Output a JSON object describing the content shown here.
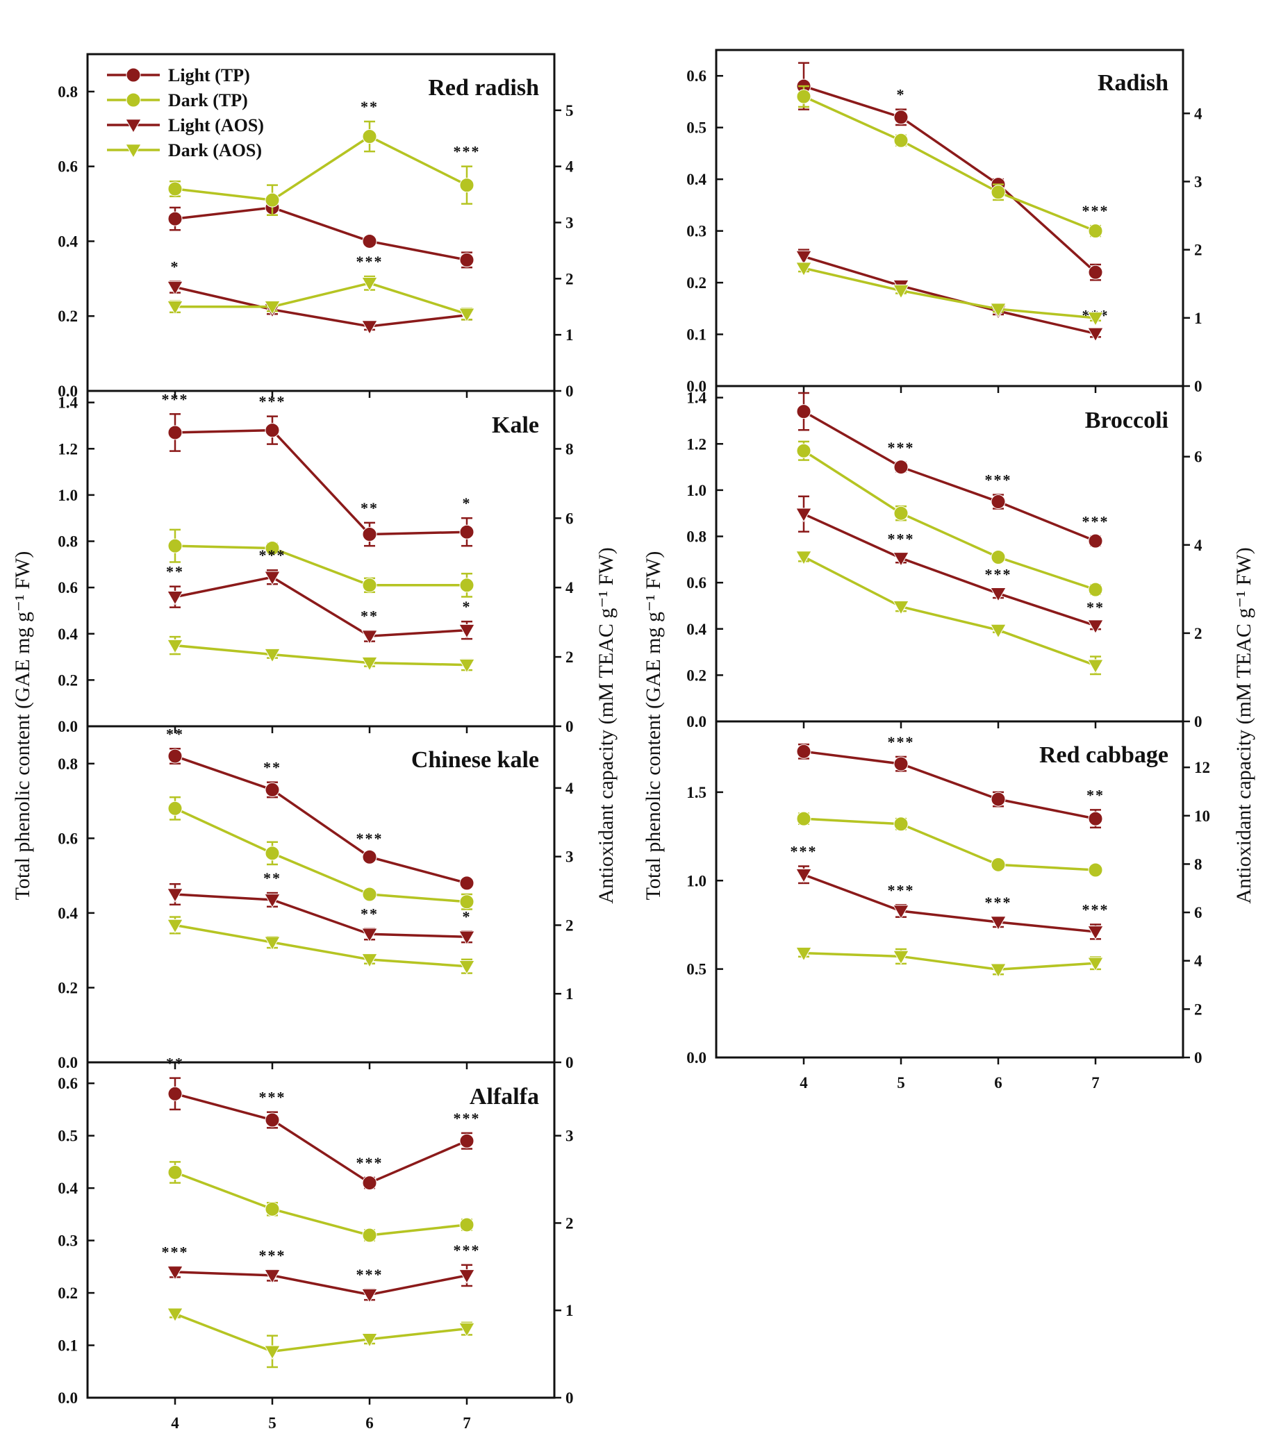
{
  "figure": {
    "ylabel_left": "Total phenolic content (GAE mg g⁻¹ FW)",
    "ylabel_right": "Antioxidant capacity (mM TEAC g⁻¹ FW)",
    "legend": [
      {
        "label": "Light (TP)",
        "color": "#8B1A1A",
        "marker": "circle"
      },
      {
        "label": "Dark (TP)",
        "color": "#B5C422",
        "marker": "circle"
      },
      {
        "label": "Light (AOS)",
        "color": "#8B1A1A",
        "marker": "triangle-down"
      },
      {
        "label": "Dark (AOS)",
        "color": "#B5C422",
        "marker": "triangle-down"
      }
    ]
  },
  "chart_data": [
    {
      "type": "line",
      "title": "Red radish",
      "x": [
        4,
        5,
        6,
        7
      ],
      "y_left": {
        "range": [
          0,
          0.9
        ],
        "ticks": [
          "0.0",
          "0.2",
          "0.4",
          "0.6",
          "0.8"
        ]
      },
      "y_right": {
        "range": [
          0,
          6.0
        ],
        "ticks": [
          "0",
          "1",
          "2",
          "3",
          "4",
          "5"
        ]
      },
      "series": [
        {
          "name": "Light (TP)",
          "axis": "left",
          "values": [
            0.46,
            0.49,
            0.4,
            0.35
          ],
          "errors": [
            0.03,
            0.02,
            0.01,
            0.02
          ],
          "stars": [
            "",
            "",
            "",
            ""
          ]
        },
        {
          "name": "Dark (TP)",
          "axis": "left",
          "values": [
            0.54,
            0.51,
            0.68,
            0.55
          ],
          "errors": [
            0.02,
            0.04,
            0.04,
            0.05
          ],
          "stars": [
            "",
            "",
            "**",
            "***"
          ]
        },
        {
          "name": "Light (AOS)",
          "axis": "right",
          "values": [
            1.85,
            1.45,
            1.15,
            1.35
          ],
          "errors": [
            0.1,
            0.08,
            0.06,
            0.08
          ],
          "stars": [
            "*",
            "",
            "",
            ""
          ]
        },
        {
          "name": "Dark (AOS)",
          "axis": "right",
          "values": [
            1.5,
            1.5,
            1.92,
            1.37
          ],
          "errors": [
            0.1,
            0.08,
            0.12,
            0.1
          ],
          "stars": [
            "",
            "",
            "***",
            ""
          ]
        }
      ]
    },
    {
      "type": "line",
      "title": "Kale",
      "x": [
        4,
        5,
        6,
        7
      ],
      "y_left": {
        "range": [
          0,
          1.45
        ],
        "ticks": [
          "0.0",
          "0.2",
          "0.4",
          "0.6",
          "0.8",
          "1.0",
          "1.2",
          "1.4"
        ]
      },
      "y_right": {
        "range": [
          0,
          9.67
        ],
        "ticks": [
          "0",
          "2",
          "4",
          "6",
          "8"
        ]
      },
      "series": [
        {
          "name": "Light (TP)",
          "axis": "left",
          "values": [
            1.27,
            1.28,
            0.83,
            0.84
          ],
          "errors": [
            0.08,
            0.06,
            0.05,
            0.06
          ],
          "stars": [
            "***",
            "***",
            "**",
            "*"
          ]
        },
        {
          "name": "Dark (TP)",
          "axis": "left",
          "values": [
            0.78,
            0.77,
            0.61,
            0.61
          ],
          "errors": [
            0.07,
            0.02,
            0.03,
            0.05
          ],
          "stars": [
            "",
            "",
            "",
            ""
          ]
        },
        {
          "name": "Light (AOS)",
          "axis": "right",
          "values": [
            3.73,
            4.3,
            2.6,
            2.77
          ],
          "errors": [
            0.3,
            0.2,
            0.15,
            0.25
          ],
          "stars": [
            "**",
            "***",
            "**",
            "*"
          ]
        },
        {
          "name": "Dark (AOS)",
          "axis": "right",
          "values": [
            2.33,
            2.07,
            1.83,
            1.77
          ],
          "errors": [
            0.25,
            0.1,
            0.1,
            0.15
          ],
          "stars": [
            "",
            "",
            "",
            ""
          ]
        }
      ]
    },
    {
      "type": "line",
      "title": "Chinese kale",
      "x": [
        4,
        5,
        6,
        7
      ],
      "y_left": {
        "range": [
          0,
          0.9
        ],
        "ticks": [
          "0.0",
          "0.2",
          "0.4",
          "0.6",
          "0.8"
        ]
      },
      "y_right": {
        "range": [
          0,
          4.9
        ],
        "ticks": [
          "0",
          "1",
          "2",
          "3",
          "4"
        ]
      },
      "series": [
        {
          "name": "Light (TP)",
          "axis": "left",
          "values": [
            0.82,
            0.73,
            0.55,
            0.48
          ],
          "errors": [
            0.02,
            0.02,
            0.01,
            0.01
          ],
          "stars": [
            "**",
            "**",
            "***",
            ""
          ]
        },
        {
          "name": "Dark (TP)",
          "axis": "left",
          "values": [
            0.68,
            0.56,
            0.45,
            0.43
          ],
          "errors": [
            0.03,
            0.03,
            0.01,
            0.02
          ],
          "stars": [
            "",
            "",
            "",
            ""
          ]
        },
        {
          "name": "Light (AOS)",
          "axis": "right",
          "values": [
            2.45,
            2.37,
            1.87,
            1.83
          ],
          "errors": [
            0.15,
            0.1,
            0.08,
            0.08
          ],
          "stars": [
            "",
            "**",
            "**",
            "*"
          ]
        },
        {
          "name": "Dark (AOS)",
          "axis": "right",
          "values": [
            2.0,
            1.75,
            1.5,
            1.4
          ],
          "errors": [
            0.12,
            0.08,
            0.06,
            0.1
          ],
          "stars": [
            "",
            "",
            "",
            ""
          ]
        }
      ]
    },
    {
      "type": "line",
      "title": "Alfalfa",
      "x": [
        4,
        5,
        6,
        7
      ],
      "y_left": {
        "range": [
          0,
          0.64
        ],
        "ticks": [
          "0.0",
          "0.1",
          "0.2",
          "0.3",
          "0.4",
          "0.5",
          "0.6"
        ]
      },
      "y_right": {
        "range": [
          0,
          3.84
        ],
        "ticks": [
          "0",
          "1",
          "2",
          "3"
        ]
      },
      "series": [
        {
          "name": "Light (TP)",
          "axis": "left",
          "values": [
            0.58,
            0.53,
            0.41,
            0.49
          ],
          "errors": [
            0.03,
            0.015,
            0.01,
            0.015
          ],
          "stars": [
            "**",
            "***",
            "***",
            "***"
          ]
        },
        {
          "name": "Dark (TP)",
          "axis": "left",
          "values": [
            0.43,
            0.36,
            0.31,
            0.33
          ],
          "errors": [
            0.02,
            0.012,
            0.01,
            0.01
          ],
          "stars": [
            "",
            "",
            "",
            ""
          ]
        },
        {
          "name": "Light (AOS)",
          "axis": "right",
          "values": [
            1.44,
            1.4,
            1.18,
            1.4
          ],
          "errors": [
            0.06,
            0.06,
            0.06,
            0.12
          ],
          "stars": [
            "***",
            "***",
            "***",
            "***"
          ]
        },
        {
          "name": "Dark (AOS)",
          "axis": "right",
          "values": [
            0.96,
            0.53,
            0.67,
            0.79
          ],
          "errors": [
            0.04,
            0.18,
            0.05,
            0.07
          ],
          "stars": [
            "",
            "",
            "",
            ""
          ]
        }
      ]
    },
    {
      "type": "line",
      "title": "Radish",
      "x": [
        4,
        5,
        6,
        7
      ],
      "y_left": {
        "range": [
          0,
          0.65
        ],
        "ticks": [
          "0.0",
          "0.1",
          "0.2",
          "0.3",
          "0.4",
          "0.5",
          "0.6"
        ]
      },
      "y_right": {
        "range": [
          0,
          4.93
        ],
        "ticks": [
          "0",
          "1",
          "2",
          "3",
          "4"
        ]
      },
      "series": [
        {
          "name": "Light (TP)",
          "axis": "left",
          "values": [
            0.58,
            0.52,
            0.39,
            0.22
          ],
          "errors": [
            0.045,
            0.015,
            0.01,
            0.015
          ],
          "stars": [
            "",
            "*",
            "",
            ""
          ]
        },
        {
          "name": "Dark (TP)",
          "axis": "left",
          "values": [
            0.56,
            0.475,
            0.375,
            0.3
          ],
          "errors": [
            0.02,
            0.01,
            0.015,
            0.01
          ],
          "stars": [
            "",
            "",
            "",
            "***"
          ]
        },
        {
          "name": "Light (AOS)",
          "axis": "right",
          "values": [
            1.9,
            1.47,
            1.1,
            0.77
          ],
          "errors": [
            0.1,
            0.05,
            0.05,
            0.05
          ],
          "stars": [
            "",
            "",
            "",
            "***"
          ]
        },
        {
          "name": "Dark (AOS)",
          "axis": "right",
          "values": [
            1.73,
            1.4,
            1.13,
            1.0
          ],
          "errors": [
            0.05,
            0.04,
            0.04,
            0.04
          ],
          "stars": [
            "",
            "",
            "",
            ""
          ]
        }
      ]
    },
    {
      "type": "line",
      "title": "Broccoli",
      "x": [
        4,
        5,
        6,
        7
      ],
      "y_left": {
        "range": [
          0,
          1.45
        ],
        "ticks": [
          "0.0",
          "0.2",
          "0.4",
          "0.6",
          "0.8",
          "1.0",
          "1.2",
          "1.4"
        ]
      },
      "y_right": {
        "range": [
          0,
          7.6
        ],
        "ticks": [
          "0",
          "2",
          "4",
          "6"
        ]
      },
      "series": [
        {
          "name": "Light (TP)",
          "axis": "left",
          "values": [
            1.34,
            1.1,
            0.95,
            0.78
          ],
          "errors": [
            0.08,
            0.02,
            0.03,
            0.02
          ],
          "stars": [
            "",
            "***",
            "***",
            "***"
          ]
        },
        {
          "name": "Dark (TP)",
          "axis": "left",
          "values": [
            1.17,
            0.9,
            0.71,
            0.57
          ],
          "errors": [
            0.04,
            0.03,
            0.01,
            0.02
          ],
          "stars": [
            "",
            "",
            "",
            ""
          ]
        },
        {
          "name": "Light (AOS)",
          "axis": "right",
          "values": [
            4.7,
            3.7,
            2.9,
            2.17
          ],
          "errors": [
            0.4,
            0.1,
            0.1,
            0.08
          ],
          "stars": [
            "",
            "***",
            "***",
            "**"
          ]
        },
        {
          "name": "Dark (AOS)",
          "axis": "right",
          "values": [
            3.73,
            2.6,
            2.07,
            1.27
          ],
          "errors": [
            0.1,
            0.1,
            0.05,
            0.2
          ],
          "stars": [
            "",
            "",
            "",
            ""
          ]
        }
      ]
    },
    {
      "type": "line",
      "title": "Red cabbage",
      "x": [
        4,
        5,
        6,
        7
      ],
      "y_left": {
        "range": [
          0,
          1.9
        ],
        "ticks": [
          "0.0",
          "0.5",
          "1.0",
          "1.5"
        ]
      },
      "y_right": {
        "range": [
          0,
          13.9
        ],
        "ticks": [
          "0",
          "2",
          "4",
          "6",
          "8",
          "10",
          "12"
        ]
      },
      "series": [
        {
          "name": "Light (TP)",
          "axis": "left",
          "values": [
            1.73,
            1.66,
            1.46,
            1.35
          ],
          "errors": [
            0.04,
            0.04,
            0.04,
            0.05
          ],
          "stars": [
            "",
            "***",
            "",
            "**"
          ]
        },
        {
          "name": "Dark (TP)",
          "axis": "left",
          "values": [
            1.35,
            1.32,
            1.09,
            1.06
          ],
          "errors": [
            0.03,
            0.03,
            0.02,
            0.02
          ],
          "stars": [
            "",
            "",
            "",
            ""
          ]
        },
        {
          "name": "Light (AOS)",
          "axis": "right",
          "values": [
            7.56,
            6.06,
            5.6,
            5.2
          ],
          "errors": [
            0.35,
            0.25,
            0.2,
            0.3
          ],
          "stars": [
            "***",
            "***",
            "***",
            "***"
          ]
        },
        {
          "name": "Dark (AOS)",
          "axis": "right",
          "values": [
            4.32,
            4.18,
            3.64,
            3.9
          ],
          "errors": [
            0.15,
            0.3,
            0.2,
            0.25
          ],
          "stars": [
            "",
            "",
            "",
            ""
          ]
        }
      ]
    }
  ]
}
